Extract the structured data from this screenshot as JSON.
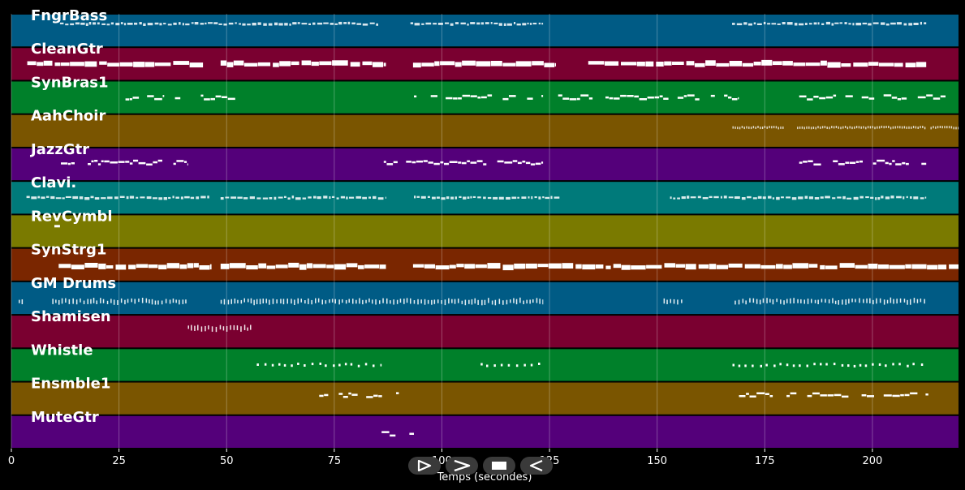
{
  "chart_data": {
    "type": "piano-roll",
    "xlabel": "Temps (secondes)",
    "xlim": [
      0,
      220
    ],
    "x_ticks": [
      0,
      25,
      50,
      75,
      100,
      125,
      150,
      175,
      200
    ],
    "grid": true,
    "tracks": [
      {
        "name": "FngrBass",
        "color": "#005b85",
        "segments": [
          [
            11.3,
            85.5
          ],
          [
            92.7,
            123.5
          ],
          [
            167.4,
            212.5
          ]
        ],
        "density": "dashed",
        "pos": 0.3
      },
      {
        "name": "CleanGtr",
        "color": "#7a0030",
        "segments": [
          [
            3.7,
            44.5
          ],
          [
            48.6,
            87
          ],
          [
            93.3,
            126.5
          ],
          [
            134,
            212.5
          ]
        ],
        "density": "blocks",
        "pos": 0.5
      },
      {
        "name": "SynBras1",
        "color": "#00802a",
        "segments": [
          [
            26.5,
            35.5
          ],
          [
            38,
            40
          ],
          [
            44,
            52
          ],
          [
            93.5,
            123.5
          ],
          [
            127,
            135
          ],
          [
            138,
            169
          ],
          [
            183,
            217
          ]
        ],
        "density": "phrases",
        "pos": 0.5
      },
      {
        "name": "AahChoir",
        "color": "#7a5500",
        "segments": [
          [
            167.5,
            179.5
          ],
          [
            182.5,
            212.5
          ],
          [
            213.5,
            220
          ]
        ],
        "density": "fine",
        "pos": 0.4
      },
      {
        "name": "JazzGtr",
        "color": "#54007a",
        "segments": [
          [
            11.5,
            41
          ],
          [
            86.5,
            123.5
          ],
          [
            183,
            212.5
          ]
        ],
        "density": "phrases",
        "pos": 0.45
      },
      {
        "name": "Clavi.",
        "color": "#007a7a",
        "segments": [
          [
            3.5,
            46
          ],
          [
            48.6,
            87
          ],
          [
            93.5,
            127.5
          ],
          [
            153,
            212.5
          ]
        ],
        "density": "dashed",
        "pos": 0.5
      },
      {
        "name": "RevCymbl",
        "color": "#7a7a00",
        "segments": [
          [
            10,
            11.3
          ]
        ],
        "density": "single",
        "pos": 0.35
      },
      {
        "name": "SynStrg1",
        "color": "#7a2600",
        "segments": [
          [
            11,
            46.5
          ],
          [
            48.6,
            87
          ],
          [
            93.3,
            220
          ]
        ],
        "density": "blocks",
        "pos": 0.55
      },
      {
        "name": "GM Drums",
        "color": "#005b85",
        "segments": [
          [
            1.7,
            3
          ],
          [
            9.5,
            41
          ],
          [
            48.6,
            123.5
          ],
          [
            151.5,
            156
          ],
          [
            168,
            212.5
          ]
        ],
        "density": "drums",
        "pos": 0.6
      },
      {
        "name": "Shamisen",
        "color": "#7a0030",
        "segments": [
          [
            41,
            56
          ]
        ],
        "density": "drums",
        "pos": 0.4
      },
      {
        "name": "Whistle",
        "color": "#00802a",
        "segments": [
          [
            57,
            86
          ],
          [
            109,
            123.5
          ],
          [
            167.5,
            212.5
          ]
        ],
        "density": "dots",
        "pos": 0.5
      },
      {
        "name": "Ensmble1",
        "color": "#7a5500",
        "segments": [
          [
            71.5,
            90
          ],
          [
            169,
            213
          ]
        ],
        "density": "phrases",
        "pos": 0.4
      },
      {
        "name": "MuteGtr",
        "color": "#54007a",
        "segments": [
          [
            86,
            93.5
          ]
        ],
        "density": "phrases",
        "pos": 0.55
      }
    ]
  },
  "transport": {
    "buttons": [
      "play",
      "fast-forward",
      "stop",
      "rewind"
    ]
  }
}
